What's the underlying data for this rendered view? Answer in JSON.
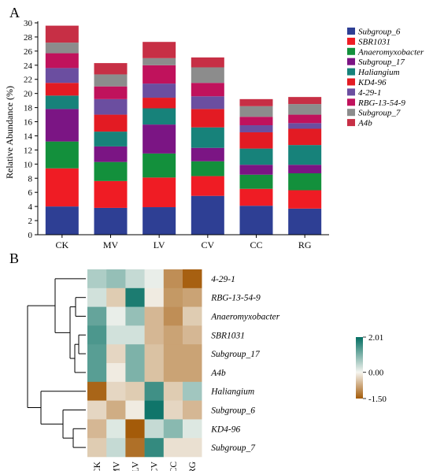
{
  "panels": {
    "a": "A",
    "b": "B"
  },
  "chart_data": [
    {
      "type": "bar",
      "stacked": true,
      "ylabel": "Relative Abundance (%)",
      "xlabel": "",
      "ylim": [
        0,
        30
      ],
      "yticks": [
        "0",
        "2",
        "4",
        "6",
        "8",
        "10",
        "12",
        "14",
        "16",
        "18",
        "20",
        "22",
        "24",
        "26",
        "28",
        "30"
      ],
      "categories": [
        "CK",
        "MV",
        "LV",
        "CV",
        "CC",
        "RG"
      ],
      "legend_position": "right",
      "series": [
        {
          "name": "Subgroup_6",
          "color": "#2e3f94",
          "values": [
            4.0,
            3.8,
            3.9,
            5.5,
            4.1,
            3.7
          ]
        },
        {
          "name": "SBR1031",
          "color": "#ef1c24",
          "values": [
            5.4,
            3.8,
            4.2,
            2.8,
            2.4,
            2.6
          ]
        },
        {
          "name": "Anaeromyxobacter",
          "color": "#13903c",
          "values": [
            3.8,
            2.7,
            3.4,
            2.1,
            2.0,
            2.4
          ]
        },
        {
          "name": "Subgroup_17",
          "color": "#7b1584",
          "values": [
            4.6,
            2.2,
            4.1,
            1.9,
            1.4,
            1.2
          ]
        },
        {
          "name": "Haliangium",
          "color": "#17827a",
          "values": [
            1.9,
            2.1,
            2.3,
            2.9,
            2.3,
            2.8
          ]
        },
        {
          "name": "KD4-96",
          "color": "#e31b23",
          "values": [
            1.8,
            2.4,
            1.5,
            2.6,
            2.3,
            2.3
          ]
        },
        {
          "name": "4-29-1",
          "color": "#6b4ea0",
          "values": [
            2.1,
            2.2,
            2.0,
            1.8,
            1.0,
            0.8
          ]
        },
        {
          "name": "RBG-13-54-9",
          "color": "#c0125c",
          "values": [
            2.1,
            1.8,
            2.6,
            1.9,
            1.2,
            1.2
          ]
        },
        {
          "name": "Subgroup_7",
          "color": "#8c8c8c",
          "values": [
            1.5,
            1.7,
            1.0,
            2.2,
            1.5,
            1.5
          ]
        },
        {
          "name": "A4b",
          "color": "#c72f45",
          "values": [
            2.4,
            1.6,
            2.3,
            1.4,
            1.0,
            1.0
          ]
        }
      ]
    },
    {
      "type": "heatmap",
      "columns": [
        "CK",
        "MV",
        "LV",
        "CV",
        "CC",
        "RG"
      ],
      "rows": [
        "4-29-1",
        "RBG-13-54-9",
        "Anaeromyxobacter",
        "SBR1031",
        "Subgroup_17",
        "A4b",
        "Haliangium",
        "Subgroup_6",
        "KD4-96",
        "Subgroup_7"
      ],
      "values": [
        [
          0.6,
          0.8,
          0.4,
          0.1,
          -1.0,
          -1.45
        ],
        [
          0.3,
          -0.4,
          1.8,
          -0.1,
          -0.9,
          -0.8
        ],
        [
          1.2,
          0.1,
          0.8,
          -0.6,
          -1.0,
          -0.4
        ],
        [
          1.4,
          0.3,
          0.3,
          -0.6,
          -0.8,
          -0.6
        ],
        [
          1.3,
          -0.3,
          1.0,
          -0.5,
          -0.8,
          -0.8
        ],
        [
          1.3,
          -0.1,
          1.0,
          -0.5,
          -0.8,
          -0.8
        ],
        [
          -1.4,
          -0.3,
          -0.4,
          1.5,
          -0.4,
          0.7
        ],
        [
          -0.3,
          -0.7,
          -0.1,
          1.9,
          -0.3,
          -0.6
        ],
        [
          -0.6,
          0.2,
          -1.5,
          0.4,
          0.9,
          0.2
        ],
        [
          -0.4,
          0.4,
          -1.3,
          1.6,
          -0.2,
          -0.2
        ]
      ],
      "colorbar": {
        "min": -1.5,
        "max": 2.01,
        "mid": 0,
        "tick_labels": [
          "2.01",
          "0.00",
          "-1.50"
        ],
        "colors": {
          "low": "#a45b09",
          "mid": "#f5f5f0",
          "high": "#036e62"
        }
      }
    }
  ]
}
